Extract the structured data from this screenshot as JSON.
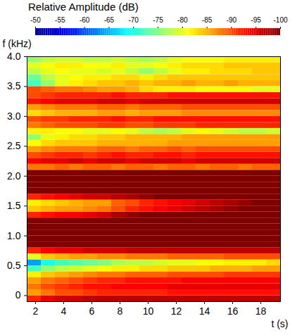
{
  "chart_data": {
    "type": "heatmap",
    "xlabel": "t (s)",
    "ylabel": "f (kHz)",
    "xlim": [
      1.4,
      19.4
    ],
    "xticks": [
      2,
      4,
      6,
      8,
      10,
      12,
      14,
      16,
      18
    ],
    "ylim": [
      -0.1,
      4.0
    ],
    "yticks": [
      0,
      0.5,
      {
        "value": 1,
        "label": "1.0"
      },
      1.5,
      {
        "value": 2,
        "label": "2.0"
      },
      2.5,
      {
        "value": 3,
        "label": "3.0"
      },
      3.5,
      {
        "value": 4,
        "label": "4.0"
      }
    ],
    "color_label": "Relative Amplitude (dB)",
    "color_range": [
      -50,
      -100
    ],
    "color_ticks": [
      -50,
      -55,
      -60,
      -65,
      -70,
      -75,
      -80,
      -85,
      -90,
      -95,
      -100
    ],
    "xbins": [
      1.4,
      2.4,
      3.4,
      4.4,
      5.4,
      6.4,
      7.4,
      8.4,
      9.4,
      10.4,
      11.4,
      12.4,
      13.4,
      14.4,
      15.4,
      16.4,
      17.4,
      18.4,
      19.4
    ],
    "ybins": [
      -0.1,
      0,
      0.1,
      0.2,
      0.3,
      0.4,
      0.5,
      0.6,
      0.7,
      0.8,
      0.9,
      1.0,
      1.1,
      1.2,
      1.3,
      1.4,
      1.5,
      1.6,
      1.7,
      1.8,
      1.9,
      2.0,
      2.1,
      2.2,
      2.3,
      2.4,
      2.5,
      2.6,
      2.7,
      2.8,
      2.9,
      3.0,
      3.1,
      3.2,
      3.3,
      3.4,
      3.5,
      3.6,
      3.7,
      3.8,
      3.9,
      4.0
    ],
    "values": [
      [
        -92,
        -95,
        -96,
        -96,
        -97,
        -97,
        -97,
        -97,
        -97,
        -97,
        -97,
        -97,
        -97,
        -97,
        -97,
        -97,
        -97,
        -97
      ],
      [
        -86,
        -88,
        -90,
        -90,
        -91,
        -92,
        -92,
        -92,
        -92,
        -92,
        -93,
        -93,
        -93,
        -93,
        -93,
        -93,
        -93,
        -93
      ],
      [
        -88,
        -90,
        -91,
        -92,
        -93,
        -93,
        -94,
        -94,
        -94,
        -94,
        -95,
        -95,
        -95,
        -95,
        -95,
        -95,
        -95,
        -95
      ],
      [
        -86,
        -88,
        -89,
        -90,
        -91,
        -92,
        -92,
        -93,
        -93,
        -93,
        -93,
        -94,
        -94,
        -94,
        -94,
        -94,
        -94,
        -94
      ],
      [
        -82,
        -84,
        -85,
        -86,
        -87,
        -88,
        -88,
        -89,
        -89,
        -89,
        -90,
        -90,
        -90,
        -90,
        -91,
        -91,
        -91,
        -91
      ],
      [
        -72,
        -76,
        -78,
        -79,
        -80,
        -81,
        -82,
        -82,
        -83,
        -83,
        -84,
        -84,
        -84,
        -85,
        -85,
        -85,
        -86,
        -86
      ],
      [
        -64,
        -70,
        -72,
        -73,
        -74,
        -75,
        -77,
        -78,
        -78,
        -79,
        -80,
        -80,
        -81,
        -81,
        -82,
        -82,
        -82,
        -83
      ],
      [
        -80,
        -84,
        -85,
        -86,
        -86,
        -87,
        -87,
        -88,
        -88,
        -88,
        -89,
        -89,
        -89,
        -89,
        -90,
        -90,
        -90,
        -90
      ],
      [
        -92,
        -94,
        -95,
        -95,
        -96,
        -96,
        -96,
        -97,
        -97,
        -97,
        -97,
        -97,
        -97,
        -97,
        -97,
        -97,
        -97,
        -97
      ],
      [
        -100,
        -100,
        -100,
        -100,
        -100,
        -100,
        -100,
        -100,
        -100,
        -100,
        -100,
        -100,
        -100,
        -100,
        -100,
        -100,
        -100,
        -100
      ],
      [
        -100,
        -100,
        -100,
        -100,
        -100,
        -100,
        -100,
        -100,
        -100,
        -100,
        -100,
        -100,
        -100,
        -100,
        -100,
        -100,
        -100,
        -100
      ],
      [
        -100,
        -100,
        -100,
        -100,
        -100,
        -100,
        -100,
        -100,
        -100,
        -100,
        -100,
        -100,
        -100,
        -100,
        -100,
        -100,
        -100,
        -100
      ],
      [
        -100,
        -100,
        -100,
        -100,
        -100,
        -100,
        -100,
        -100,
        -100,
        -100,
        -100,
        -100,
        -100,
        -100,
        -100,
        -100,
        -100,
        -100
      ],
      [
        -100,
        -100,
        -100,
        -100,
        -100,
        -100,
        -100,
        -100,
        -100,
        -100,
        -100,
        -100,
        -100,
        -100,
        -100,
        -100,
        -100,
        -100
      ],
      [
        -92,
        -93,
        -94,
        -94,
        -95,
        -96,
        -98,
        -99,
        -100,
        -100,
        -100,
        -100,
        -100,
        -100,
        -100,
        -100,
        -100,
        -100
      ],
      [
        -84,
        -85,
        -86,
        -86,
        -87,
        -88,
        -90,
        -92,
        -93,
        -94,
        -95,
        -96,
        -97,
        -98,
        -99,
        -100,
        -100,
        -100
      ],
      [
        -82,
        -83,
        -84,
        -85,
        -86,
        -86,
        -89,
        -90,
        -92,
        -93,
        -94,
        -95,
        -96,
        -97,
        -98,
        -99,
        -100,
        -100
      ],
      [
        -92,
        -93,
        -94,
        -95,
        -96,
        -96,
        -97,
        -98,
        -99,
        -100,
        -100,
        -100,
        -100,
        -100,
        -100,
        -100,
        -100,
        -100
      ],
      [
        -100,
        -100,
        -100,
        -100,
        -100,
        -100,
        -100,
        -100,
        -100,
        -100,
        -100,
        -100,
        -100,
        -100,
        -100,
        -100,
        -100,
        -100
      ],
      [
        -100,
        -100,
        -100,
        -100,
        -100,
        -100,
        -100,
        -100,
        -100,
        -100,
        -100,
        -100,
        -100,
        -100,
        -100,
        -100,
        -100,
        -100
      ],
      [
        -100,
        -100,
        -100,
        -100,
        -100,
        -100,
        -100,
        -100,
        -100,
        -100,
        -100,
        -100,
        -100,
        -100,
        -100,
        -100,
        -100,
        -100
      ],
      [
        -100,
        -100,
        -100,
        -100,
        -100,
        -100,
        -100,
        -100,
        -100,
        -100,
        -100,
        -100,
        -100,
        -100,
        -100,
        -100,
        -100,
        -100
      ],
      [
        -88,
        -88,
        -89,
        -88,
        -89,
        -89,
        -88,
        -89,
        -89,
        -88,
        -89,
        -89,
        -88,
        -89,
        -89,
        -88,
        -89,
        -89
      ],
      [
        -94,
        -95,
        -95,
        -96,
        -95,
        -96,
        -96,
        -95,
        -96,
        -96,
        -96,
        -95,
        -96,
        -96,
        -96,
        -96,
        -96,
        -96
      ],
      [
        -90,
        -91,
        -92,
        -92,
        -91,
        -92,
        -93,
        -92,
        -92,
        -93,
        -93,
        -92,
        -93,
        -93,
        -93,
        -93,
        -93,
        -93
      ],
      [
        -86,
        -87,
        -88,
        -88,
        -88,
        -89,
        -89,
        -88,
        -89,
        -89,
        -90,
        -89,
        -90,
        -90,
        -90,
        -90,
        -90,
        -90
      ],
      [
        -81,
        -83,
        -84,
        -84,
        -84,
        -85,
        -85,
        -85,
        -85,
        -85,
        -86,
        -86,
        -86,
        -86,
        -86,
        -86,
        -86,
        -86
      ],
      [
        -76,
        -80,
        -82,
        -83,
        -83,
        -84,
        -84,
        -85,
        -85,
        -85,
        -85,
        -86,
        -86,
        -86,
        -86,
        -86,
        -86,
        -86
      ],
      [
        -82,
        -82,
        -81,
        -81,
        -80,
        -80,
        -81,
        -80,
        -78,
        -77,
        -78,
        -80,
        -81,
        -80,
        -79,
        -78,
        -78,
        -79
      ],
      [
        -88,
        -89,
        -90,
        -90,
        -90,
        -91,
        -91,
        -90,
        -90,
        -91,
        -91,
        -91,
        -92,
        -92,
        -92,
        -92,
        -92,
        -92
      ],
      [
        -90,
        -91,
        -91,
        -92,
        -92,
        -92,
        -93,
        -92,
        -92,
        -93,
        -93,
        -93,
        -93,
        -93,
        -93,
        -93,
        -93,
        -93
      ],
      [
        -83,
        -84,
        -85,
        -85,
        -85,
        -86,
        -86,
        -85,
        -86,
        -86,
        -86,
        -87,
        -87,
        -87,
        -87,
        -87,
        -87,
        -87
      ],
      [
        -86,
        -87,
        -88,
        -88,
        -88,
        -89,
        -89,
        -88,
        -89,
        -89,
        -89,
        -90,
        -90,
        -90,
        -90,
        -90,
        -90,
        -90
      ],
      [
        -93,
        -94,
        -95,
        -95,
        -95,
        -96,
        -96,
        -95,
        -96,
        -96,
        -96,
        -96,
        -96,
        -96,
        -96,
        -96,
        -96,
        -96
      ],
      [
        -90,
        -91,
        -92,
        -92,
        -92,
        -92,
        -93,
        -92,
        -92,
        -92,
        -93,
        -93,
        -93,
        -93,
        -93,
        -93,
        -93,
        -93
      ],
      [
        -90,
        -89,
        -88,
        -88,
        -87,
        -86,
        -86,
        -85,
        -83,
        -82,
        -82,
        -82,
        -81,
        -81,
        -81,
        -81,
        -80,
        -80
      ],
      [
        -72,
        -76,
        -80,
        -82,
        -83,
        -84,
        -84,
        -85,
        -84,
        -85,
        -85,
        -86,
        -85,
        -85,
        -86,
        -85,
        -85,
        -85
      ],
      [
        -74,
        -78,
        -80,
        -81,
        -82,
        -82,
        -83,
        -83,
        -82,
        -83,
        -84,
        -84,
        -84,
        -84,
        -84,
        -84,
        -84,
        -84
      ],
      [
        -78,
        -80,
        -81,
        -80,
        -80,
        -79,
        -80,
        -78,
        -76,
        -78,
        -80,
        -82,
        -82,
        -83,
        -83,
        -83,
        -84,
        -84
      ],
      [
        -80,
        -81,
        -82,
        -82,
        -81,
        -81,
        -82,
        -80,
        -80,
        -81,
        -82,
        -83,
        -83,
        -83,
        -84,
        -84,
        -84,
        -84
      ],
      [
        -76,
        -78,
        -79,
        -79,
        -78,
        -78,
        -79,
        -78,
        -77,
        -78,
        -80,
        -81,
        -81,
        -81,
        -82,
        -82,
        -82,
        -82
      ]
    ]
  }
}
